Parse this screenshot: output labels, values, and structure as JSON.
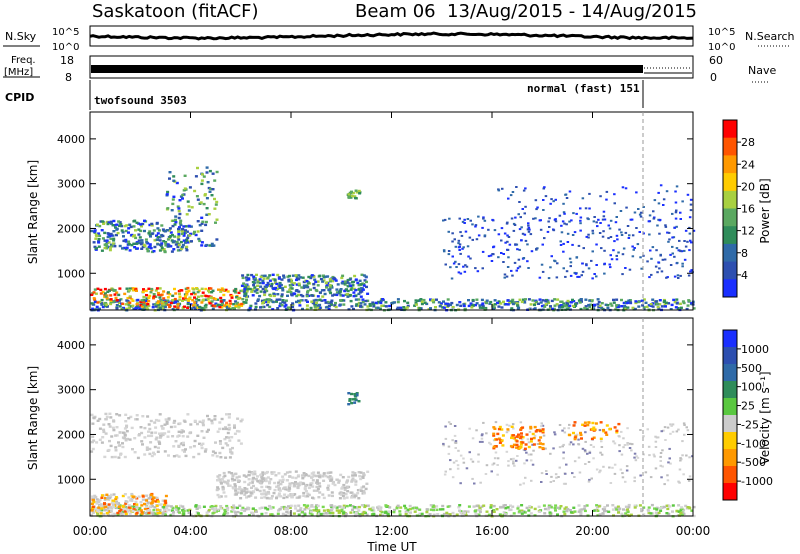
{
  "header": {
    "station": "Saskatoon (fitACF)",
    "beam_info": "Beam 06  13/Aug/2015 - 14/Aug/2015"
  },
  "status_panels": {
    "nsky_label": "N.Sky",
    "nsky_ticks": [
      "10^5",
      "10^0"
    ],
    "nsearch_label": "N.Search",
    "nsearch_ticks": [
      "10^5",
      "10^0"
    ],
    "freq_label": "Freq.",
    "freq_unit": "[MHz]",
    "freq_ticks": [
      "18",
      "8"
    ],
    "nave_label": "Nave",
    "nave_ticks": [
      "60",
      "0"
    ],
    "cpid_label": "CPID",
    "cpid_modes": [
      {
        "label": "twofsound 3503",
        "start_hour": 0,
        "end_hour": 22.0
      },
      {
        "label": "normal (fast) 151",
        "start_hour": 22.0,
        "end_hour": 24
      }
    ]
  },
  "chart_data": [
    {
      "type": "heatmap",
      "name": "power",
      "x_ticks": [
        "00:00",
        "04:00",
        "08:00",
        "12:00",
        "16:00",
        "20:00",
        "00:00"
      ],
      "x_tick_hours": [
        0,
        4,
        8,
        12,
        16,
        20,
        24
      ],
      "xlabel": "Time UT",
      "ylabel": "Slant Range [km]",
      "y_ticks": [
        "4000",
        "3000",
        "2000",
        "1000"
      ],
      "y_tick_values": [
        4000,
        3000,
        2000,
        1000
      ],
      "ylim": [
        180,
        4600
      ],
      "colorbar": {
        "label": "Power [dB]",
        "ticks": [
          "28",
          "24",
          "20",
          "16",
          "12",
          "8",
          "4"
        ],
        "colors": [
          "#ff0000",
          "#ff5500",
          "#ff9900",
          "#ffcc00",
          "#a8d040",
          "#5aa860",
          "#2f8c5a",
          "#2f6aa8",
          "#2d4fb0",
          "#1a2fff"
        ]
      }
    },
    {
      "type": "heatmap",
      "name": "velocity",
      "x_ticks": [
        "00:00",
        "04:00",
        "08:00",
        "12:00",
        "16:00",
        "20:00",
        "00:00"
      ],
      "x_tick_hours": [
        0,
        4,
        8,
        12,
        16,
        20,
        24
      ],
      "xlabel": "Time UT",
      "ylabel": "Slant Range [km]",
      "y_ticks": [
        "4000",
        "3000",
        "2000",
        "1000"
      ],
      "y_tick_values": [
        4000,
        3000,
        2000,
        1000
      ],
      "ylim": [
        180,
        4600
      ],
      "colorbar": {
        "label": "Velocity [m s⁻¹]",
        "ticks": [
          "1000",
          "500",
          "100",
          "25",
          "-25",
          "-100",
          "-500",
          "-1000"
        ],
        "colors": [
          "#1a2fff",
          "#2d4fb0",
          "#2f6aa8",
          "#2f8c5a",
          "#5ac840",
          "#cccccc",
          "#ffcc00",
          "#ff9900",
          "#ff5500",
          "#ff0000"
        ]
      }
    }
  ]
}
